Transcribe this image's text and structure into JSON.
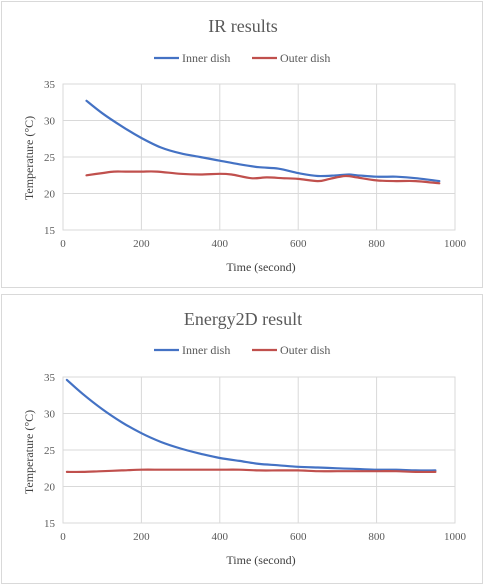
{
  "chart_data": [
    {
      "type": "line",
      "title": "IR results",
      "xlabel": "Time (second)",
      "ylabel": "Temperature (°C)",
      "xlim": [
        0,
        1000
      ],
      "ylim": [
        15,
        35
      ],
      "xticks": [
        0,
        200,
        400,
        600,
        800,
        1000
      ],
      "yticks": [
        15,
        20,
        25,
        30,
        35
      ],
      "grid": true,
      "legend_position": "top",
      "series": [
        {
          "name": "Inner dish",
          "color": "#4472c4",
          "x": [
            60,
            100,
            150,
            200,
            250,
            300,
            350,
            400,
            450,
            500,
            550,
            600,
            650,
            700,
            730,
            750,
            800,
            850,
            900,
            960
          ],
          "y": [
            32.7,
            31.0,
            29.2,
            27.6,
            26.3,
            25.5,
            25.0,
            24.5,
            24.0,
            23.6,
            23.4,
            22.8,
            22.4,
            22.5,
            22.6,
            22.5,
            22.3,
            22.3,
            22.1,
            21.7
          ]
        },
        {
          "name": "Outer dish",
          "color": "#c0504d",
          "x": [
            60,
            100,
            130,
            160,
            200,
            240,
            300,
            350,
            400,
            430,
            480,
            520,
            560,
            600,
            650,
            680,
            720,
            750,
            800,
            850,
            900,
            960
          ],
          "y": [
            22.5,
            22.8,
            23.0,
            23.0,
            23.0,
            23.0,
            22.7,
            22.6,
            22.7,
            22.6,
            22.1,
            22.2,
            22.1,
            22.0,
            21.7,
            22.0,
            22.4,
            22.2,
            21.8,
            21.7,
            21.7,
            21.4
          ]
        }
      ]
    },
    {
      "type": "line",
      "title": "Energy2D result",
      "xlabel": "Time (second)",
      "ylabel": "Temperature (°C)",
      "xlim": [
        0,
        1000
      ],
      "ylim": [
        15,
        35
      ],
      "xticks": [
        0,
        200,
        400,
        600,
        800,
        1000
      ],
      "yticks": [
        15,
        20,
        25,
        30,
        35
      ],
      "grid": true,
      "legend_position": "top",
      "series": [
        {
          "name": "Inner dish",
          "color": "#4472c4",
          "x": [
            10,
            50,
            100,
            150,
            200,
            250,
            300,
            350,
            400,
            450,
            500,
            550,
            600,
            650,
            700,
            750,
            800,
            850,
            900,
            950
          ],
          "y": [
            34.6,
            32.7,
            30.6,
            28.8,
            27.3,
            26.1,
            25.2,
            24.5,
            23.9,
            23.5,
            23.1,
            22.9,
            22.7,
            22.6,
            22.5,
            22.4,
            22.3,
            22.3,
            22.2,
            22.2
          ]
        },
        {
          "name": "Outer dish",
          "color": "#c0504d",
          "x": [
            10,
            50,
            100,
            150,
            200,
            250,
            300,
            350,
            400,
            450,
            500,
            550,
            600,
            650,
            700,
            750,
            800,
            850,
            900,
            950
          ],
          "y": [
            22.0,
            22.0,
            22.1,
            22.2,
            22.3,
            22.3,
            22.3,
            22.3,
            22.3,
            22.3,
            22.2,
            22.2,
            22.2,
            22.1,
            22.1,
            22.1,
            22.1,
            22.1,
            22.0,
            22.0
          ]
        }
      ]
    }
  ]
}
